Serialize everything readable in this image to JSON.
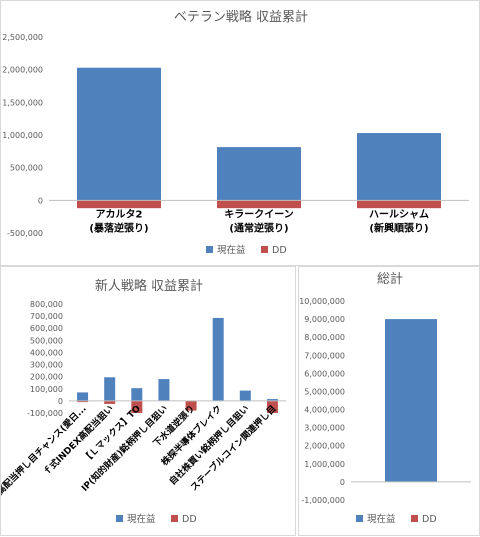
{
  "colors": {
    "current": "#4f81bd",
    "dd": "#c0504d",
    "axis": "#bfbfbf",
    "text": "#595959",
    "negative_tick": "#c00000"
  },
  "chart_data": [
    {
      "id": "veteran",
      "type": "bar",
      "title": "ベテラン戦略 収益累計",
      "categories": [
        [
          "アカルタ2",
          "(暴落逆張り)"
        ],
        [
          "キラークイーン",
          "(通常逆張り)"
        ],
        [
          "ハールシャム",
          "(新興順張り)"
        ]
      ],
      "series": [
        {
          "name": "現在益",
          "values": [
            2030000,
            815000,
            1030000
          ]
        },
        {
          "name": "DD",
          "values": [
            -120000,
            -120000,
            -120000
          ]
        }
      ],
      "ylim": [
        -500000,
        2500000
      ],
      "yticks": [
        "2,500,000",
        "2,000,000",
        "1,500,000",
        "1,000,000",
        "500,000",
        "0",
        "-500,000"
      ],
      "grid": false,
      "legend": "bottom"
    },
    {
      "id": "newbie",
      "type": "bar",
      "title": "新人戦略 収益累計",
      "categories": [
        "高配当押し目チャンス(愛日...",
        "ｆ式INDEX高配当狙い",
        "【Ｌマックス】TO",
        "IP(知的財産)銘柄押し目狙い",
        "下水道逆張り",
        "株探半導体ブレイク",
        "自社株買い銘柄押し目狙い",
        "ステーブルコイン関連押し目"
      ],
      "series": [
        {
          "name": "現在益",
          "values": [
            70000,
            195000,
            105000,
            180000,
            0,
            685000,
            85000,
            15000
          ]
        },
        {
          "name": "DD",
          "values": [
            -10000,
            -25000,
            -100000,
            0,
            -80000,
            0,
            0,
            -100000
          ]
        }
      ],
      "ylim": [
        -100000,
        800000
      ],
      "yticks": [
        "800,000",
        "700,000",
        "600,000",
        "500,000",
        "400,000",
        "300,000",
        "200,000",
        "100,000",
        "0",
        "-100,000"
      ],
      "grid": false,
      "legend": "bottom"
    },
    {
      "id": "total",
      "type": "bar",
      "title": "総計",
      "categories": [
        ""
      ],
      "series": [
        {
          "name": "現在益",
          "values": [
            9000000
          ]
        },
        {
          "name": "DD",
          "values": [
            0
          ]
        }
      ],
      "ylim": [
        -1000000,
        10000000
      ],
      "yticks": [
        "10,000,000",
        "9,000,000",
        "8,000,000",
        "7,000,000",
        "6,000,000",
        "5,000,000",
        "4,000,000",
        "3,000,000",
        "2,000,000",
        "1,000,000",
        "0",
        "-1,000,000"
      ],
      "grid": false,
      "legend": "bottom"
    }
  ]
}
